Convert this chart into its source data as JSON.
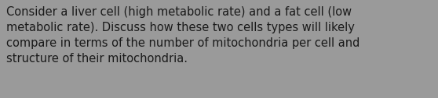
{
  "text": "Consider a liver cell (high metabolic rate) and a fat cell (low\nmetabolic rate). Discuss how these two cells types will likely\ncompare in terms of the number of mitochondria per cell and\nstructure of their mitochondria.",
  "background_color": "#9a9a9a",
  "text_color": "#1a1a1a",
  "font_size": 10.5,
  "font_family": "DejaVu Sans",
  "fig_width": 5.58,
  "fig_height": 1.26,
  "dpi": 100
}
